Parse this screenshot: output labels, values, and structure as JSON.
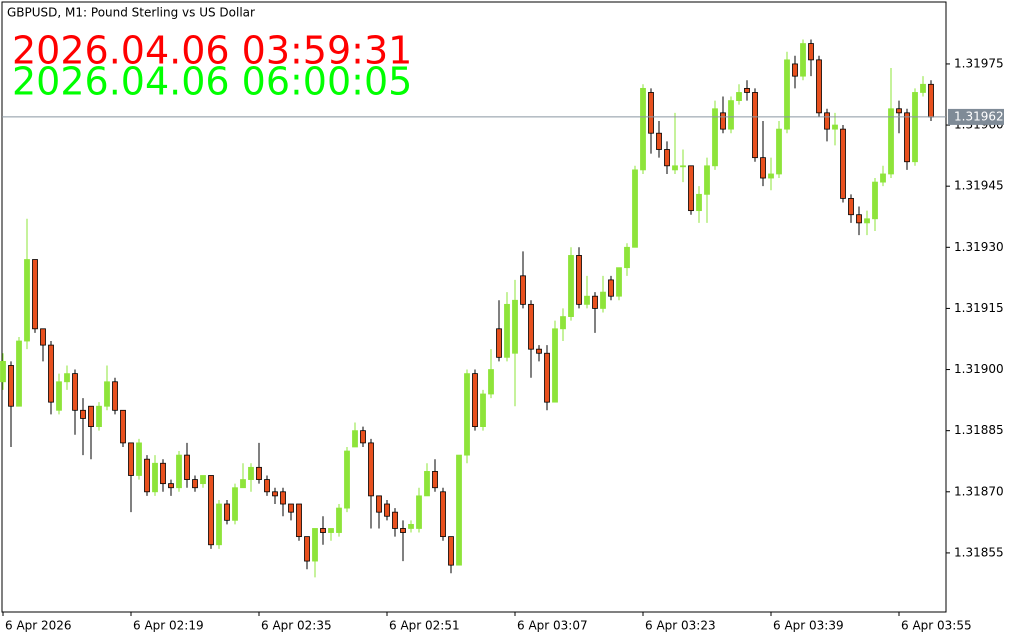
{
  "chart_data": {
    "type": "candlestick",
    "title": "GBPUSD, M1:  Pound Sterling vs US Dollar",
    "annotations": [
      {
        "text": "2026.04.06 03:59:31",
        "color": "#ff0000"
      },
      {
        "text": "2026.04.06 06:00:05",
        "color": "#00ff00"
      }
    ],
    "last_price": 1.31962,
    "up_color": "#8ee43a",
    "down_color": "#e8501e",
    "categories": [
      "6 Apr 2026",
      null,
      null,
      null,
      null,
      null,
      null,
      null,
      null,
      null,
      null,
      null,
      null,
      null,
      null,
      null,
      "6 Apr 02:19",
      null,
      null,
      null,
      null,
      null,
      null,
      null,
      null,
      null,
      null,
      null,
      null,
      null,
      null,
      null,
      "6 Apr 02:35",
      null,
      null,
      null,
      null,
      null,
      null,
      null,
      null,
      null,
      null,
      null,
      null,
      null,
      null,
      null,
      "6 Apr 02:51",
      null,
      null,
      null,
      null,
      null,
      null,
      null,
      null,
      null,
      null,
      null,
      null,
      null,
      null,
      null,
      "6 Apr 03:07",
      null,
      null,
      null,
      null,
      null,
      null,
      null,
      null,
      null,
      null,
      null,
      null,
      null,
      null,
      null,
      "6 Apr 03:23",
      null,
      null,
      null,
      null,
      null,
      null,
      null,
      null,
      null,
      null,
      null,
      null,
      null,
      null,
      null,
      "6 Apr 03:39",
      null,
      null,
      null,
      null,
      null,
      null,
      null,
      null,
      null,
      null,
      null,
      null,
      null,
      null,
      null,
      "6 Apr 03:55",
      null,
      null,
      null,
      null
    ],
    "open": [
      1.31897,
      1.31901,
      1.31891,
      1.31907,
      1.31927,
      1.3191,
      1.31906,
      1.3189,
      1.31897,
      1.31899,
      1.3189,
      1.31891,
      1.31886,
      1.31891,
      1.31897,
      1.3189,
      1.31882,
      1.31874,
      1.31878,
      1.3187,
      1.31877,
      1.31872,
      1.31871,
      1.31879,
      1.31873,
      1.31872,
      1.31874,
      1.31857,
      1.31867,
      1.31863,
      1.31871,
      1.31873,
      1.31876,
      1.31873,
      1.3187,
      1.3187,
      1.31867,
      1.31867,
      1.31859,
      1.31853,
      1.31861,
      1.3186,
      1.3186,
      1.31866,
      1.31881,
      1.31885,
      1.31882,
      1.31869,
      1.31867,
      1.31865,
      1.31861,
      1.31861,
      1.31861,
      1.31869,
      1.31875,
      1.3187,
      1.31859,
      1.31852,
      1.31879,
      1.31899,
      1.31886,
      1.31894,
      1.3191,
      1.31903,
      1.31904,
      1.31923,
      1.31916,
      1.31905,
      1.31904,
      1.31892,
      1.3191,
      1.31913,
      1.31928,
      1.31916,
      1.31918,
      1.31915,
      1.31922,
      1.31918,
      1.31925,
      1.3193,
      1.31949,
      1.31968,
      1.31958,
      1.31954,
      1.31949,
      1.3195,
      1.3195,
      1.31939,
      1.31943,
      1.3195,
      1.31963,
      1.31959,
      1.31966,
      1.31969,
      1.31968,
      1.31952,
      1.31947,
      1.31948,
      1.31959,
      1.31975,
      1.31972,
      1.3198,
      1.31976,
      1.31963,
      1.31959,
      1.31959,
      1.31942,
      1.31938,
      1.31936,
      1.31937,
      1.31946,
      1.31948,
      1.31964,
      1.31963,
      1.31951,
      1.31968,
      1.3197
    ],
    "high": [
      1.31904,
      1.31902,
      1.31908,
      1.31937,
      1.31927,
      1.3191,
      1.31907,
      1.31899,
      1.31901,
      1.319,
      1.31893,
      1.31891,
      1.31892,
      1.31901,
      1.31898,
      1.3189,
      1.31882,
      1.31883,
      1.31879,
      1.31879,
      1.31878,
      1.31873,
      1.3188,
      1.31882,
      1.31874,
      1.31874,
      1.31874,
      1.31868,
      1.31868,
      1.31872,
      1.31877,
      1.31877,
      1.31882,
      1.31874,
      1.31871,
      1.31871,
      1.31867,
      1.31867,
      1.31859,
      1.31861,
      1.31864,
      1.31861,
      1.31867,
      1.31881,
      1.31887,
      1.31886,
      1.31883,
      1.31869,
      1.31868,
      1.31866,
      1.31863,
      1.31863,
      1.31871,
      1.31877,
      1.31878,
      1.31871,
      1.31859,
      1.31879,
      1.319,
      1.319,
      1.31895,
      1.31905,
      1.31917,
      1.31919,
      1.31922,
      1.31929,
      1.31917,
      1.31906,
      1.31906,
      1.31912,
      1.31915,
      1.3193,
      1.3193,
      1.31923,
      1.31919,
      1.31923,
      1.31923,
      1.31925,
      1.31931,
      1.3195,
      1.3197,
      1.31969,
      1.31961,
      1.31956,
      1.31963,
      1.31954,
      1.3195,
      1.31945,
      1.31952,
      1.31966,
      1.31967,
      1.31967,
      1.3197,
      1.31971,
      1.31969,
      1.31961,
      1.31952,
      1.31961,
      1.31978,
      1.31977,
      1.31981,
      1.31981,
      1.31977,
      1.31964,
      1.31963,
      1.3196,
      1.31943,
      1.3194,
      1.31939,
      1.31947,
      1.3195,
      1.31974,
      1.31966,
      1.31964,
      1.31969,
      1.31972,
      1.31971
    ],
    "low": [
      1.31895,
      1.31881,
      1.31891,
      1.31905,
      1.31909,
      1.31902,
      1.31889,
      1.31889,
      1.31895,
      1.31884,
      1.31879,
      1.31878,
      1.31885,
      1.3189,
      1.31889,
      1.31881,
      1.31865,
      1.31873,
      1.31869,
      1.31869,
      1.3187,
      1.31869,
      1.3187,
      1.31871,
      1.3187,
      1.31871,
      1.31856,
      1.31856,
      1.31862,
      1.31862,
      1.31871,
      1.3187,
      1.31872,
      1.31869,
      1.31867,
      1.31864,
      1.31863,
      1.31858,
      1.31851,
      1.31849,
      1.31857,
      1.31858,
      1.31859,
      1.31865,
      1.31881,
      1.31881,
      1.31861,
      1.31861,
      1.31863,
      1.31859,
      1.31853,
      1.3186,
      1.3186,
      1.31869,
      1.3187,
      1.31858,
      1.3185,
      1.31852,
      1.31877,
      1.31885,
      1.31885,
      1.31893,
      1.31902,
      1.31902,
      1.31891,
      1.31915,
      1.31898,
      1.31902,
      1.3189,
      1.31892,
      1.31907,
      1.31912,
      1.31915,
      1.31915,
      1.31909,
      1.31914,
      1.31917,
      1.31917,
      1.31923,
      1.3193,
      1.31948,
      1.31953,
      1.31952,
      1.31948,
      1.31948,
      1.31946,
      1.31938,
      1.31936,
      1.31936,
      1.31949,
      1.31958,
      1.31958,
      1.31965,
      1.31966,
      1.31951,
      1.31945,
      1.31944,
      1.31947,
      1.31958,
      1.31969,
      1.31971,
      1.31972,
      1.31962,
      1.31956,
      1.31955,
      1.31941,
      1.31936,
      1.31933,
      1.31933,
      1.31934,
      1.31945,
      1.31947,
      1.31958,
      1.31949,
      1.3195,
      1.31967,
      1.31961
    ],
    "close": [
      1.31902,
      1.31891,
      1.31907,
      1.31927,
      1.3191,
      1.31906,
      1.31892,
      1.31897,
      1.31899,
      1.3189,
      1.31888,
      1.31886,
      1.31891,
      1.31897,
      1.3189,
      1.31882,
      1.31874,
      1.31882,
      1.3187,
      1.31877,
      1.31872,
      1.31871,
      1.31879,
      1.31873,
      1.31871,
      1.31874,
      1.31857,
      1.31867,
      1.31863,
      1.31871,
      1.31873,
      1.31876,
      1.31873,
      1.3187,
      1.31869,
      1.31867,
      1.31865,
      1.31859,
      1.31853,
      1.31861,
      1.3186,
      1.31861,
      1.31866,
      1.3188,
      1.31885,
      1.31882,
      1.31869,
      1.31865,
      1.31864,
      1.31861,
      1.3186,
      1.31862,
      1.31869,
      1.31875,
      1.31871,
      1.31859,
      1.31852,
      1.31879,
      1.31899,
      1.31886,
      1.31894,
      1.319,
      1.31903,
      1.31916,
      1.31917,
      1.31916,
      1.31905,
      1.31904,
      1.31892,
      1.3191,
      1.31913,
      1.31928,
      1.31916,
      1.31918,
      1.31915,
      1.31919,
      1.31918,
      1.31925,
      1.3193,
      1.31949,
      1.31969,
      1.31958,
      1.31954,
      1.3195,
      1.3195,
      1.3195,
      1.31939,
      1.31943,
      1.3195,
      1.31964,
      1.31959,
      1.31966,
      1.31968,
      1.31968,
      1.31952,
      1.31947,
      1.31948,
      1.31959,
      1.31976,
      1.31972,
      1.3198,
      1.31976,
      1.31963,
      1.31959,
      1.3196,
      1.31942,
      1.31938,
      1.31936,
      1.31937,
      1.31946,
      1.31948,
      1.31964,
      1.31963,
      1.31951,
      1.31968,
      1.3197,
      1.31962
    ],
    "ylim": [
      1.318405,
      1.319902
    ],
    "yticks": [
      1.31855,
      {
        "value": 1.3187,
        "label": "1.31870"
      },
      1.31885,
      {
        "value": 1.319,
        "label": "1.31900"
      },
      1.31915,
      {
        "value": 1.3193,
        "label": "1.31930"
      },
      1.31945,
      {
        "value": 1.3196,
        "label": "1.31960"
      },
      1.31975
    ]
  }
}
